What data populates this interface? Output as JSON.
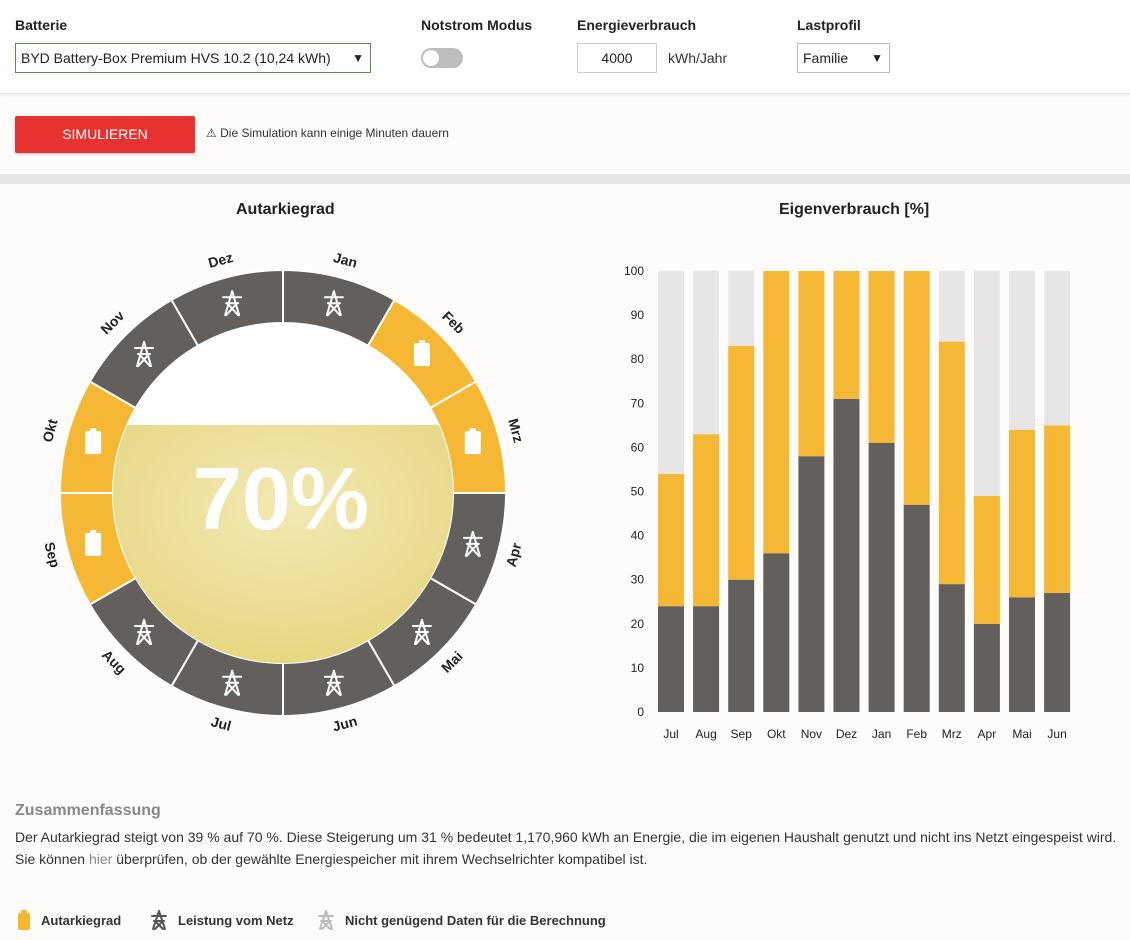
{
  "controls": {
    "battery_label": "Batterie",
    "battery_value": "BYD Battery-Box Premium HVS 10.2 (10,24 kWh)",
    "backup_label": "Notstrom Modus",
    "backup_on": false,
    "consumption_label": "Energieverbrauch",
    "consumption_value": "4000",
    "consumption_unit": "kWh/Jahr",
    "profile_label": "Lastprofil",
    "profile_value": "Familie"
  },
  "simulate": {
    "button_label": "SIMULIEREN",
    "hint": "Die Simulation kann einige Minuten dauern"
  },
  "autarky": {
    "title": "Autarkiegrad",
    "value_label": "70%",
    "value": 70,
    "months": [
      {
        "name": "Jan",
        "status": "grid"
      },
      {
        "name": "Feb",
        "status": "battery"
      },
      {
        "name": "Mrz",
        "status": "battery"
      },
      {
        "name": "Apr",
        "status": "grid"
      },
      {
        "name": "Mai",
        "status": "grid"
      },
      {
        "name": "Jun",
        "status": "grid"
      },
      {
        "name": "Jul",
        "status": "grid"
      },
      {
        "name": "Aug",
        "status": "grid"
      },
      {
        "name": "Sep",
        "status": "battery"
      },
      {
        "name": "Okt",
        "status": "battery"
      },
      {
        "name": "Nov",
        "status": "grid"
      },
      {
        "name": "Dez",
        "status": "grid"
      }
    ]
  },
  "chart_data": {
    "type": "bar",
    "stacked": true,
    "title": "Eigenverbrauch [%]",
    "categories": [
      "Jul",
      "Aug",
      "Sep",
      "Okt",
      "Nov",
      "Dez",
      "Jan",
      "Feb",
      "Mrz",
      "Apr",
      "Mai",
      "Jun"
    ],
    "y_ticks": [
      "0",
      "10",
      "20",
      "30",
      "40",
      "50",
      "60",
      "70",
      "80",
      "90",
      "100"
    ],
    "ylim": [
      0,
      100
    ],
    "series": [
      {
        "color": "#625f5c",
        "values": [
          24,
          24,
          30,
          36,
          58,
          71,
          61,
          47,
          29,
          20,
          26,
          27
        ]
      },
      {
        "color": "#f5b835",
        "values": [
          30,
          39,
          53,
          64,
          42,
          29,
          39,
          53,
          55,
          29,
          38,
          38
        ]
      },
      {
        "color": "#e8e6e4",
        "values": [
          46,
          37,
          17,
          0,
          0,
          0,
          0,
          0,
          16,
          51,
          36,
          35
        ]
      }
    ],
    "grid": false
  },
  "summary": {
    "title": "Zusammenfassung",
    "line1": "Der Autarkiegrad steigt von 39 % auf 70 %. Diese Steigerung um 31 % bedeutet 1,170,960 kWh an Energie, die im eigenen Haushalt genutzt und nicht ins Netzt eingespeist wird.",
    "line2_pre": "Sie können ",
    "line2_link": "hier",
    "line2_post": " überprüfen, ob der gewählte Energiespeicher mit ihrem Wechselrichter kompatibel ist."
  },
  "legend": {
    "battery": "Autarkiegrad",
    "grid": "Leistung vom Netz",
    "nodata": "Nicht genügend Daten für die Berechnung"
  },
  "colors": {
    "grid_segment": "#625f5c",
    "battery_segment": "#f5b835",
    "fill": "#ede3a2",
    "button": "#e83232",
    "bar_empty": "#e8e6e4"
  }
}
